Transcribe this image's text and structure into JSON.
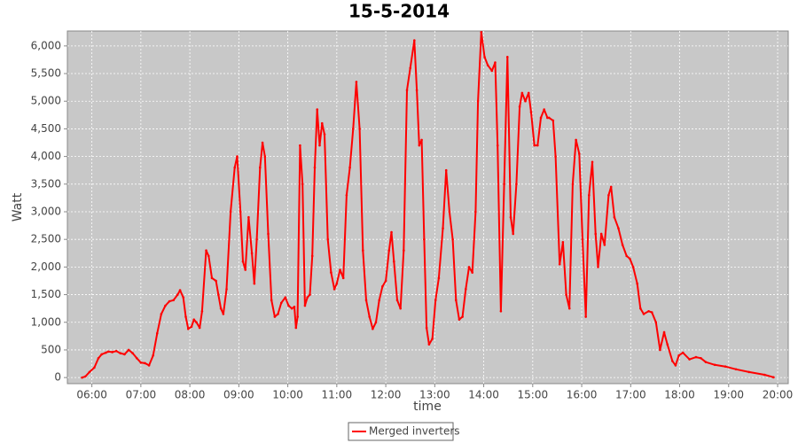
{
  "chart_data": {
    "type": "line",
    "title": "15-5-2014",
    "x_label": "time",
    "y_label": "Watt",
    "x": [
      "05:48",
      "05:52",
      "05:57",
      "06:03",
      "06:08",
      "06:12",
      "06:17",
      "06:20",
      "06:25",
      "06:30",
      "06:35",
      "06:40",
      "06:45",
      "06:50",
      "06:55",
      "07:00",
      "07:05",
      "07:10",
      "07:15",
      "07:20",
      "07:25",
      "07:30",
      "07:35",
      "07:40",
      "07:45",
      "07:48",
      "07:52",
      "07:55",
      "07:58",
      "08:02",
      "08:05",
      "08:08",
      "08:12",
      "08:15",
      "08:20",
      "08:23",
      "08:27",
      "08:32",
      "08:35",
      "08:38",
      "08:41",
      "08:45",
      "08:50",
      "08:55",
      "08:58",
      "09:02",
      "09:05",
      "09:08",
      "09:12",
      "09:16",
      "09:19",
      "09:22",
      "09:26",
      "09:29",
      "09:32",
      "09:36",
      "09:40",
      "09:44",
      "09:48",
      "09:52",
      "09:57",
      "10:01",
      "10:05",
      "10:08",
      "10:10",
      "10:12",
      "10:15",
      "10:18",
      "10:21",
      "10:24",
      "10:27",
      "10:30",
      "10:33",
      "10:36",
      "10:39",
      "10:42",
      "10:45",
      "10:49",
      "10:53",
      "10:57",
      "11:00",
      "11:04",
      "11:08",
      "11:12",
      "11:16",
      "11:20",
      "11:24",
      "11:28",
      "11:32",
      "11:36",
      "11:40",
      "11:44",
      "11:48",
      "11:52",
      "11:56",
      "12:00",
      "12:04",
      "12:07",
      "12:10",
      "12:14",
      "12:18",
      "12:22",
      "12:26",
      "12:30",
      "12:35",
      "12:38",
      "12:41",
      "12:44",
      "12:47",
      "12:50",
      "12:53",
      "12:57",
      "13:01",
      "13:05",
      "13:10",
      "13:14",
      "13:18",
      "13:22",
      "13:26",
      "13:30",
      "13:34",
      "13:38",
      "13:42",
      "13:46",
      "13:50",
      "13:53",
      "13:57",
      "14:01",
      "14:05",
      "14:10",
      "14:14",
      "14:17",
      "14:21",
      "14:25",
      "14:29",
      "14:33",
      "14:36",
      "14:40",
      "14:44",
      "14:47",
      "14:51",
      "14:55",
      "14:58",
      "15:02",
      "15:06",
      "15:10",
      "15:14",
      "15:18",
      "15:20",
      "15:25",
      "15:28",
      "15:33",
      "15:37",
      "15:41",
      "15:45",
      "15:49",
      "15:53",
      "15:57",
      "16:01",
      "16:05",
      "16:09",
      "16:13",
      "16:17",
      "16:20",
      "16:24",
      "16:28",
      "16:33",
      "16:36",
      "16:40",
      "16:45",
      "16:50",
      "16:55",
      "16:59",
      "17:03",
      "17:08",
      "17:12",
      "17:16",
      "17:22",
      "17:26",
      "17:31",
      "17:36",
      "17:41",
      "17:45",
      "17:51",
      "17:55",
      "17:59",
      "18:04",
      "18:12",
      "18:20",
      "18:26",
      "18:32",
      "18:43",
      "18:56",
      "19:09",
      "19:25",
      "19:44",
      "19:55"
    ],
    "series": [
      {
        "name": "Merged inverters",
        "color": "#ff0000",
        "values": [
          0,
          20,
          100,
          180,
          350,
          420,
          450,
          470,
          460,
          480,
          440,
          420,
          500,
          440,
          350,
          270,
          260,
          220,
          400,
          800,
          1150,
          1300,
          1380,
          1400,
          1500,
          1580,
          1450,
          1100,
          880,
          920,
          1050,
          1000,
          900,
          1200,
          2300,
          2200,
          1800,
          1750,
          1500,
          1250,
          1150,
          1600,
          3000,
          3800,
          4000,
          3000,
          2100,
          1950,
          2900,
          2250,
          1700,
          2500,
          3800,
          4250,
          4000,
          2600,
          1400,
          1100,
          1150,
          1350,
          1450,
          1300,
          1250,
          1280,
          900,
          1100,
          4200,
          3500,
          1300,
          1450,
          1500,
          2200,
          3800,
          4850,
          4200,
          4600,
          4400,
          2500,
          1900,
          1600,
          1700,
          1950,
          1800,
          3300,
          3800,
          4500,
          5350,
          4500,
          2300,
          1400,
          1100,
          880,
          1000,
          1400,
          1650,
          1750,
          2300,
          2630,
          2100,
          1400,
          1250,
          2300,
          5200,
          5600,
          6100,
          5200,
          4200,
          4300,
          2500,
          900,
          600,
          700,
          1400,
          1800,
          2700,
          3750,
          3000,
          2500,
          1400,
          1050,
          1100,
          1600,
          2000,
          1900,
          3000,
          5000,
          6250,
          5800,
          5650,
          5550,
          5700,
          4200,
          1200,
          3500,
          5800,
          2900,
          2600,
          3500,
          4900,
          5150,
          5000,
          5150,
          4800,
          4200,
          4200,
          4700,
          4850,
          4700,
          4700,
          4650,
          4000,
          2050,
          2450,
          1500,
          1250,
          3500,
          4300,
          4050,
          2500,
          1100,
          3300,
          3900,
          2600,
          2000,
          2600,
          2400,
          3300,
          3450,
          2900,
          2700,
          2400,
          2200,
          2150,
          2000,
          1700,
          1250,
          1150,
          1200,
          1180,
          1000,
          500,
          820,
          600,
          300,
          220,
          400,
          450,
          330,
          370,
          350,
          280,
          230,
          200,
          150,
          100,
          50,
          5
        ]
      }
    ],
    "xlim": [
      "05:30",
      "20:13"
    ],
    "xticks": [
      "06:00",
      "07:00",
      "08:00",
      "09:00",
      "10:00",
      "11:00",
      "12:00",
      "13:00",
      "14:00",
      "15:00",
      "16:00",
      "17:00",
      "18:00",
      "19:00",
      "20:00"
    ],
    "ylim": [
      -110,
      6270
    ],
    "yticks": [
      0,
      500,
      {
        "value": 1000,
        "label": "1,000"
      },
      {
        "value": 1500,
        "label": "1,500"
      },
      {
        "value": 2000,
        "label": "2,000"
      },
      {
        "value": 2500,
        "label": "2,500"
      },
      {
        "value": 3000,
        "label": "3,000"
      },
      {
        "value": 3500,
        "label": "3,500"
      },
      {
        "value": 4000,
        "label": "4,000"
      },
      {
        "value": 4500,
        "label": "4,500"
      },
      {
        "value": 5000,
        "label": "5,000"
      },
      {
        "value": 5500,
        "label": "5,500"
      },
      {
        "value": 6000,
        "label": "6,000"
      }
    ],
    "grid": true,
    "legend": "bottom"
  }
}
